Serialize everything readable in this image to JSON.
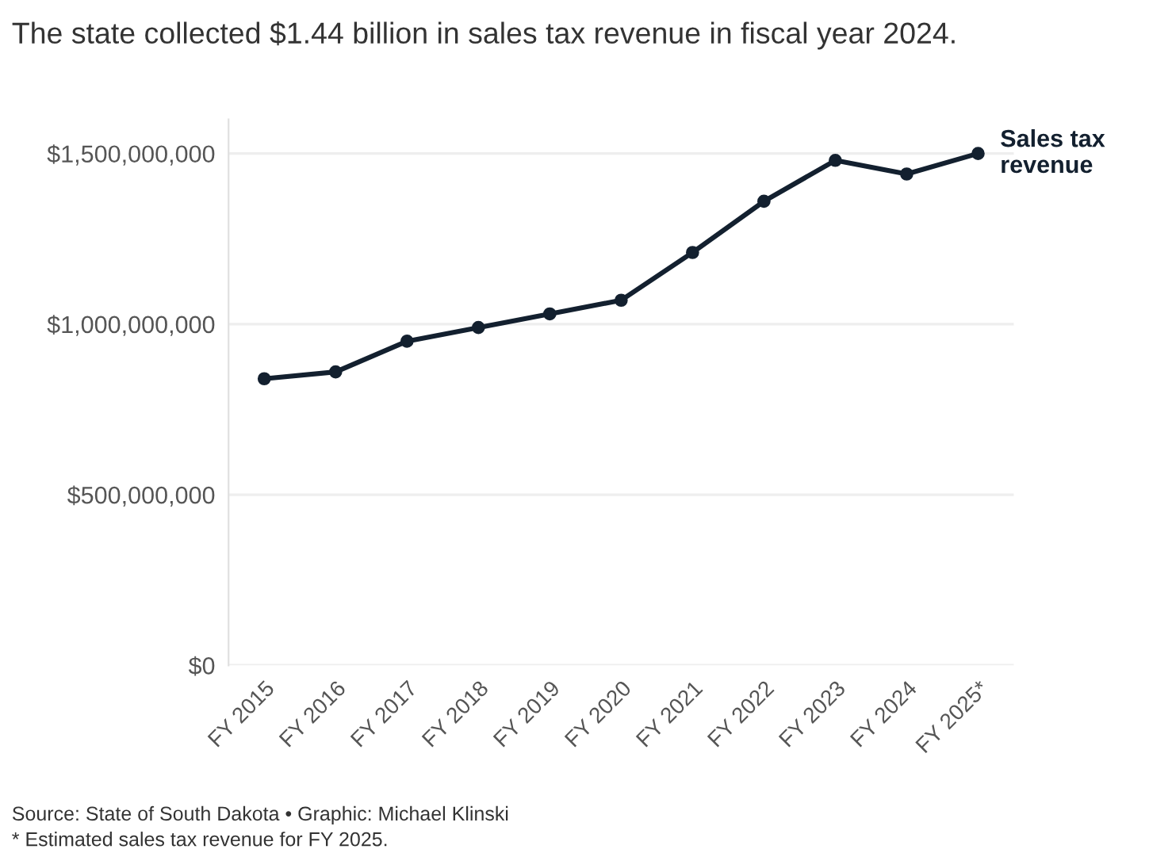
{
  "chart_data": {
    "type": "line",
    "title": "The state collected $1.44 billion in sales tax revenue in fiscal year 2024.",
    "categories": [
      "FY 2015",
      "FY 2016",
      "FY 2017",
      "FY 2018",
      "FY 2019",
      "FY 2020",
      "FY 2021",
      "FY 2022",
      "FY 2023",
      "FY 2024",
      "FY 2025*"
    ],
    "series": [
      {
        "name": "Sales tax\nrevenue",
        "color": "#13202f",
        "values": [
          840000000,
          860000000,
          950000000,
          990000000,
          1030000000,
          1070000000,
          1210000000,
          1360000000,
          1480000000,
          1440000000,
          1500000000
        ]
      }
    ],
    "ylim": [
      0,
      1600000000
    ],
    "yticks": [
      {
        "value": 0,
        "label": "$0"
      },
      {
        "value": 500000000,
        "label": "$500,000,000"
      },
      {
        "value": 1000000000,
        "label": "$1,000,000,000"
      },
      {
        "value": 1500000000,
        "label": "$1,500,000,000"
      }
    ],
    "grid": "y",
    "legend": false,
    "marker": "circle",
    "line_style": "solid",
    "annotations": [
      "Source: State of South Dakota • Graphic: Michael Klinski",
      "* Estimated sales tax revenue for FY 2025."
    ]
  }
}
